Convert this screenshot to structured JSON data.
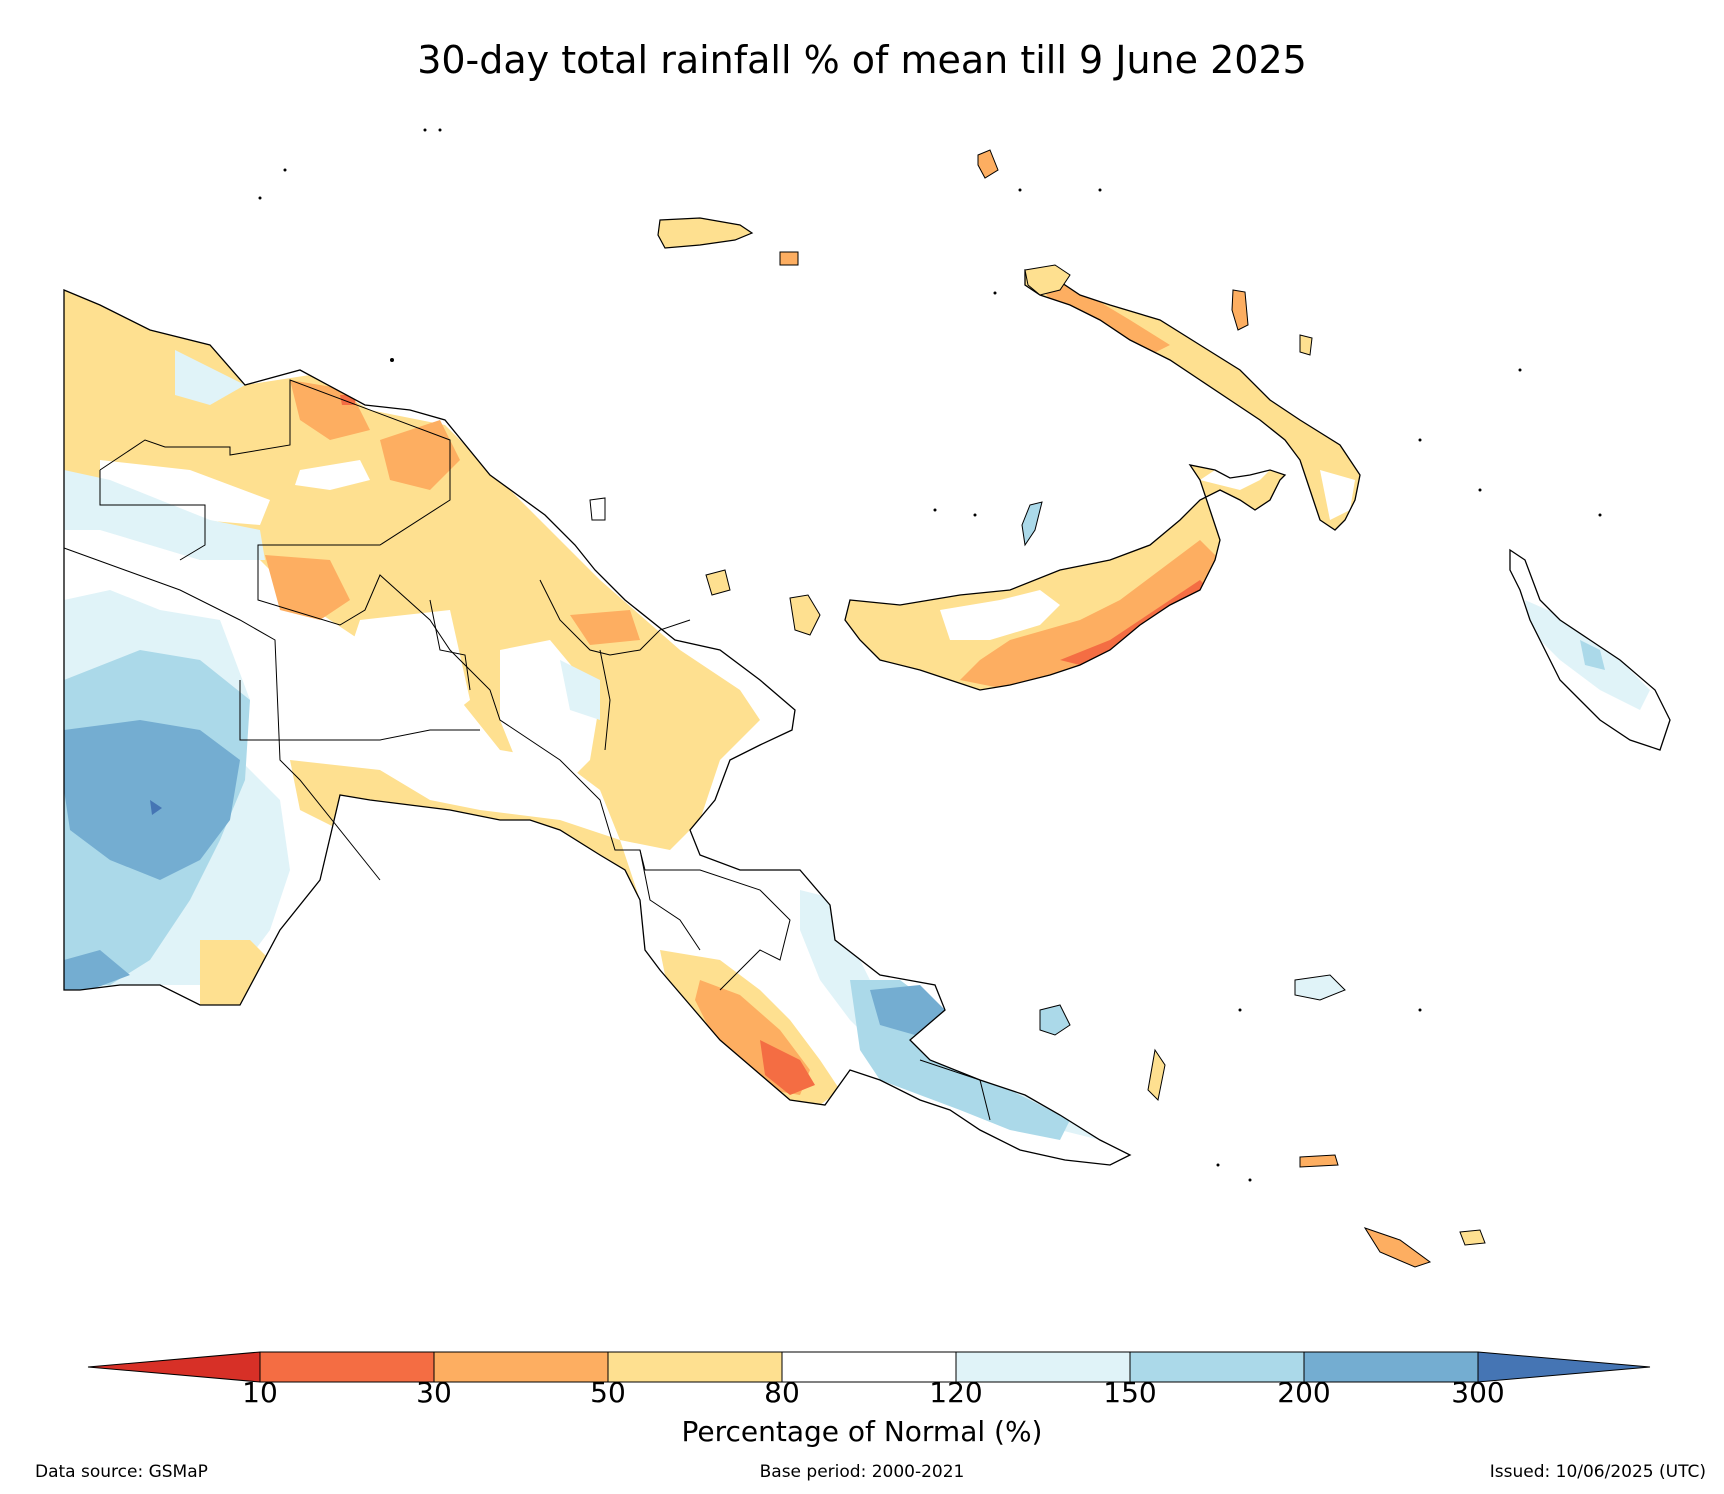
{
  "title": "30-day total rainfall % of mean till 9 June 2025",
  "colorbar": {
    "label": "Percentage of Normal (%)",
    "ticks": [
      "10",
      "30",
      "50",
      "80",
      "120",
      "150",
      "200",
      "300"
    ],
    "colors": {
      "below_10": "#d73027",
      "c10_30": "#f46d43",
      "c30_50": "#fdae61",
      "c50_80": "#fee090",
      "c80_120": "#ffffff",
      "c120_150": "#e0f3f8",
      "c150_200": "#abd9e9",
      "c200_300": "#74add1",
      "above_300": "#4575b4"
    }
  },
  "footer": {
    "source": "Data source: GSMaP",
    "base_period": "Base period: 2000-2021",
    "issued": "Issued: 10/06/2025 (UTC)"
  }
}
